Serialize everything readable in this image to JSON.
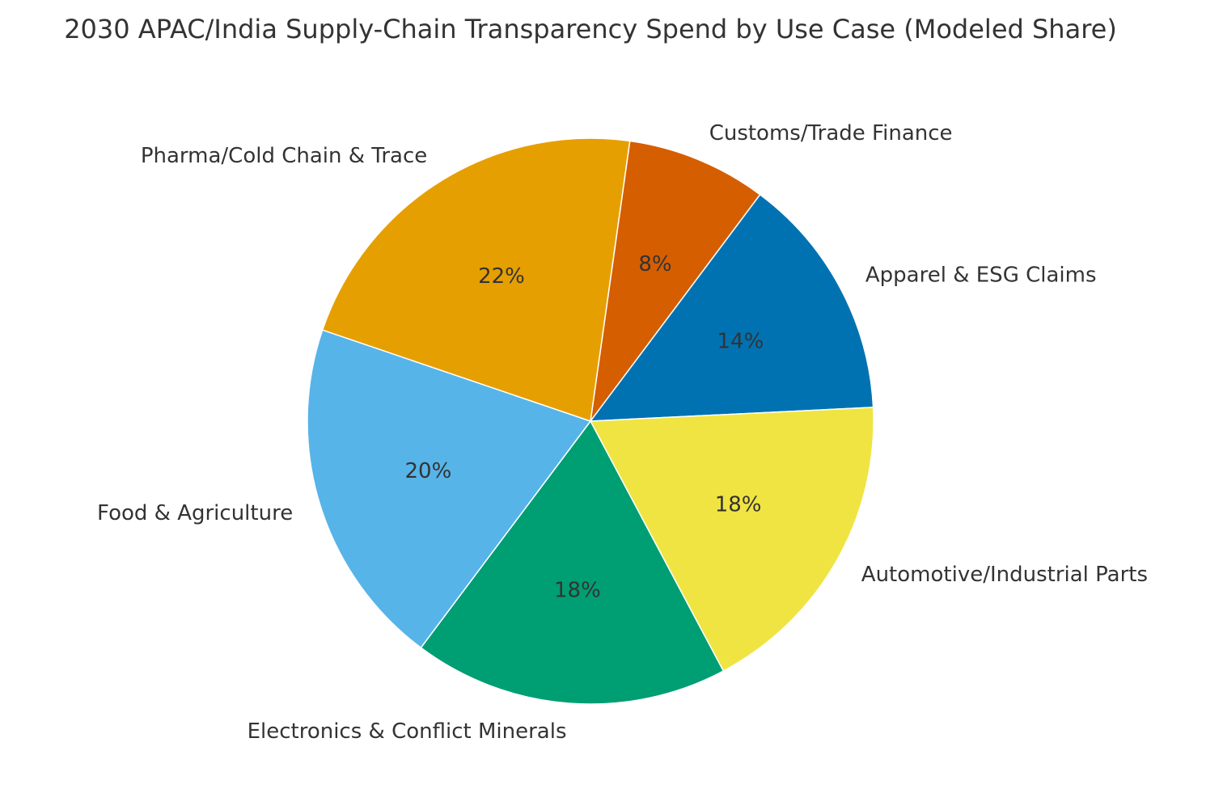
{
  "chart_data": {
    "type": "pie",
    "title": "2030 APAC/India Supply-Chain Transparency Spend by Use Case (Modeled Share)",
    "start_angle_deg": 82,
    "direction": "clockwise",
    "slices": [
      {
        "label": "Customs/Trade Finance",
        "value": 8,
        "pct_label": "8%",
        "color": "#D55E00"
      },
      {
        "label": "Apparel & ESG Claims",
        "value": 14,
        "pct_label": "14%",
        "color": "#0072B2"
      },
      {
        "label": "Automotive/Industrial Parts",
        "value": 18,
        "pct_label": "18%",
        "color": "#F0E442"
      },
      {
        "label": "Electronics & Conflict Minerals",
        "value": 18,
        "pct_label": "18%",
        "color": "#009E73"
      },
      {
        "label": "Food & Agriculture",
        "value": 20,
        "pct_label": "20%",
        "color": "#56B4E9"
      },
      {
        "label": "Pharma/Cold Chain & Trace",
        "value": 22,
        "pct_label": "22%",
        "color": "#E69F00"
      }
    ]
  }
}
